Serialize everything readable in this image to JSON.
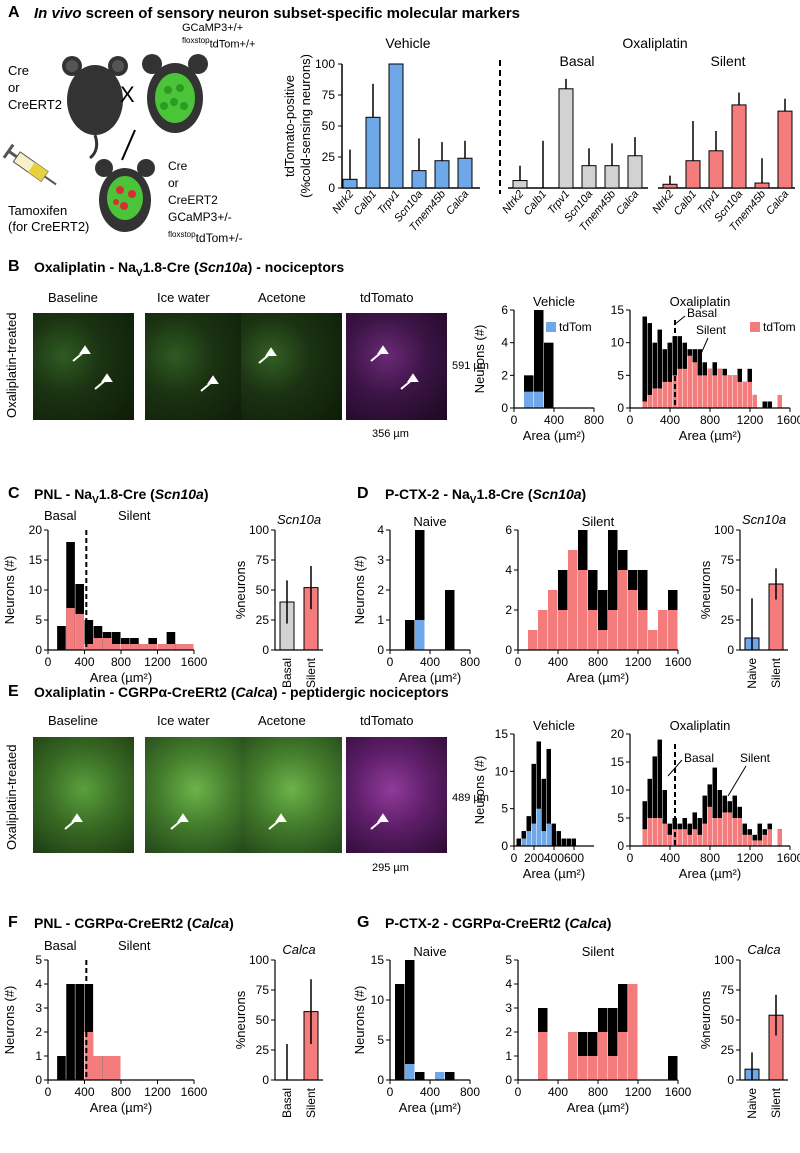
{
  "colors": {
    "vehicle_blue": "#6fa8e8",
    "basal_gray": "#d2d2d2",
    "silent_red": "#f47c7c",
    "black": "#000000",
    "green": "#7cc95a",
    "magenta": "#b04bc0"
  },
  "panelA": {
    "letter": "A",
    "title_italic": "In vivo",
    "title_rest": " screen of sensory neuron subset-specific molecular markers",
    "schematic": {
      "cre_label": [
        "Cre",
        "or",
        "CreERT2"
      ],
      "cross_symbol": "X",
      "gcamp_label": "GCaMP3+/+",
      "floxstop": "floxstop",
      "tdtom_pp": "tdTom+/+",
      "offspring_label": [
        "Cre",
        "or",
        "CreERT2",
        "GCaMP3+/-"
      ],
      "tdtom_pm": "tdTom+/-",
      "tamoxifen": "Tamoxifen",
      "for_creert2": "(for CreERT2)"
    },
    "chart": {
      "ylabel_1": "tdTomato-positive",
      "ylabel_2": "(%cold-sensing neurons)",
      "group_vehicle": "Vehicle",
      "group_oxali": "Oxaliplatin",
      "group_basal": "Basal",
      "group_silent": "Silent",
      "yticks": [
        "0",
        "25",
        "50",
        "75",
        "100"
      ]
    }
  },
  "panelB": {
    "letter": "B",
    "title_pre": "Oxaliplatin - Na",
    "title_sub": "V",
    "title_post": "1.8-Cre (",
    "title_gene": "Scn10a",
    "title_end": ") - nociceptors",
    "side_label": "Oxaliplatin-treated",
    "image_titles": [
      "Baseline",
      "Ice water",
      "Acetone",
      "tdTomato"
    ],
    "scale_v": "591 µm",
    "scale_h": "356 µm",
    "hist_vehicle_title": "Vehicle",
    "hist_oxali_title": "Oxaliplatin",
    "legend_tdtom": "tdTom",
    "basal": "Basal",
    "silent": "Silent",
    "ylabel": "Neurons (#)",
    "xlabel": "Area (µm²)"
  },
  "panelC": {
    "letter": "C",
    "title_pre": "PNL - Na",
    "title_sub": "V",
    "title_post": "1.8-Cre (",
    "title_gene": "Scn10a",
    "title_end": ")",
    "basal": "Basal",
    "silent": "Silent",
    "gene": "Scn10a",
    "ylabel": "Neurons (#)",
    "ylabel_pct": "%neurons",
    "xlabel": "Area (µm²)",
    "bar_labels": [
      "Basal",
      "Silent"
    ]
  },
  "panelD": {
    "letter": "D",
    "title_pre": "P-CTX-2 - Na",
    "title_sub": "V",
    "title_post": "1.8-Cre (",
    "title_gene": "Scn10a",
    "title_end": ")",
    "naive": "Naive",
    "silent": "Silent",
    "gene": "Scn10a",
    "ylabel": "Neurons (#)",
    "ylabel_pct": "%neurons",
    "xlabel": "Area (µm²)",
    "bar_labels": [
      "Naive",
      "Silent"
    ]
  },
  "panelE": {
    "letter": "E",
    "title_pre": "Oxaliplatin - CGRPα-CreERt2 (",
    "title_gene": "Calca",
    "title_end": ") - peptidergic nociceptors",
    "side_label": "Oxaliplatin-treated",
    "image_titles": [
      "Baseline",
      "Ice water",
      "Acetone",
      "tdTomato"
    ],
    "scale_v": "489 µm",
    "scale_h": "295 µm",
    "hist_vehicle_title": "Vehicle",
    "hist_oxali_title": "Oxaliplatin",
    "basal": "Basal",
    "silent": "Silent",
    "ylabel": "Neurons (#)",
    "xlabel": "Area (µm²)"
  },
  "panelF": {
    "letter": "F",
    "title_pre": "PNL - CGRPα-CreERt2 (",
    "title_gene": "Calca",
    "title_end": ")",
    "basal": "Basal",
    "silent": "Silent",
    "gene": "Calca",
    "ylabel": "Neurons (#)",
    "ylabel_pct": "%neurons",
    "xlabel": "Area (µm²)",
    "bar_labels": [
      "Basal",
      "Silent"
    ]
  },
  "panelG": {
    "letter": "G",
    "title_pre": "P-CTX-2 - CGRPα-CreERt2 (",
    "title_gene": "Calca",
    "title_end": ")",
    "naive": "Naive",
    "silent": "Silent",
    "gene": "Calca",
    "ylabel": "Neurons (#)",
    "ylabel_pct": "%neurons",
    "xlabel": "Area (µm²)",
    "bar_labels": [
      "Naive",
      "Silent"
    ]
  },
  "chart_data": [
    {
      "id": "A",
      "type": "bar",
      "categories": [
        "Ntrk2",
        "Calb1",
        "Trpv1",
        "Scn10a",
        "Tmem45b",
        "Calca"
      ],
      "series": [
        {
          "name": "Vehicle",
          "values": [
            7,
            57,
            100,
            14,
            22,
            24
          ],
          "err": [
            24,
            27,
            0,
            26,
            15,
            14
          ]
        },
        {
          "name": "Basal",
          "values": [
            6,
            0,
            80,
            18,
            18,
            26
          ],
          "err": [
            12,
            38,
            8,
            14,
            18,
            15
          ]
        },
        {
          "name": "Silent",
          "values": [
            3,
            22,
            30,
            67,
            4,
            62
          ],
          "err": [
            7,
            32,
            16,
            10,
            20,
            10
          ]
        }
      ],
      "ylim": [
        0,
        100
      ]
    },
    {
      "id": "B-vehicle",
      "type": "bar",
      "x": [
        150,
        250,
        350
      ],
      "series": [
        {
          "name": "total",
          "values": [
            2,
            6,
            4
          ]
        },
        {
          "name": "tdTom",
          "values": [
            1,
            1,
            0
          ]
        }
      ],
      "ylim": [
        0,
        6
      ],
      "xlim": [
        0,
        800
      ],
      "xticks": [
        0,
        400,
        800
      ],
      "yticks": [
        0,
        2,
        4,
        6
      ]
    },
    {
      "id": "B-oxali",
      "type": "bar",
      "x": [
        150,
        200,
        250,
        300,
        350,
        400,
        450,
        500,
        550,
        600,
        650,
        700,
        750,
        800,
        850,
        900,
        950,
        1000,
        1050,
        1100,
        1150,
        1200,
        1250,
        1300,
        1350,
        1400,
        1450,
        1500,
        1550
      ],
      "series": [
        {
          "name": "total",
          "values": [
            14,
            13,
            10,
            12,
            9,
            10,
            11,
            11,
            10,
            9,
            9,
            9,
            7,
            6,
            7,
            6,
            6,
            5,
            5,
            6,
            4,
            6,
            2,
            0,
            1,
            1,
            0,
            0,
            0
          ]
        },
        {
          "name": "tdTom",
          "values": [
            1,
            2,
            3,
            3,
            4,
            4,
            5,
            6,
            6,
            8,
            7,
            5,
            5,
            6,
            5,
            6,
            5,
            5,
            5,
            4,
            4,
            4,
            2,
            0,
            0,
            0,
            0,
            2,
            0
          ]
        }
      ],
      "ylim": [
        0,
        15
      ],
      "xlim": [
        0,
        1600
      ],
      "xticks": [
        0,
        400,
        800,
        1200,
        1600
      ],
      "yticks": [
        0,
        5,
        10,
        15
      ]
    },
    {
      "id": "C",
      "type": "bar",
      "x": [
        150,
        250,
        350,
        450,
        550,
        650,
        750,
        850,
        950,
        1050,
        1150,
        1250,
        1350,
        1450,
        1550
      ],
      "series": [
        {
          "name": "total",
          "values": [
            4,
            18,
            11,
            5,
            4,
            3,
            3,
            2,
            2,
            1,
            2,
            1,
            3,
            1,
            1
          ]
        },
        {
          "name": "tdTom",
          "values": [
            0,
            7,
            6,
            1,
            2,
            2,
            1,
            1,
            1,
            1,
            1,
            1,
            1,
            1,
            1
          ]
        }
      ],
      "ylim": [
        0,
        20
      ],
      "xlim": [
        0,
        1600
      ],
      "xticks": [
        0,
        400,
        800,
        1200,
        1600
      ],
      "yticks": [
        0,
        5,
        10,
        15,
        20
      ]
    },
    {
      "id": "C-pct",
      "type": "bar",
      "categories": [
        "Basal",
        "Silent"
      ],
      "values": [
        40,
        52
      ],
      "err": [
        18,
        18
      ],
      "ylim": [
        0,
        100
      ]
    },
    {
      "id": "D-naive",
      "type": "bar",
      "x": [
        200,
        300,
        600
      ],
      "series": [
        {
          "name": "total",
          "values": [
            1,
            4,
            2
          ]
        },
        {
          "name": "tdTom",
          "values": [
            0,
            1,
            0
          ]
        }
      ],
      "ylim": [
        0,
        4
      ],
      "xlim": [
        0,
        800
      ],
      "xticks": [
        0,
        400,
        800
      ],
      "yticks": [
        0,
        1,
        2,
        3,
        4
      ]
    },
    {
      "id": "D-silent",
      "type": "bar",
      "x": [
        150,
        250,
        350,
        450,
        550,
        650,
        750,
        850,
        950,
        1050,
        1150,
        1250,
        1350,
        1450,
        1550
      ],
      "series": [
        {
          "name": "total",
          "values": [
            1,
            2,
            3,
            4,
            5,
            6,
            4,
            3,
            6,
            5,
            4,
            4,
            1,
            2,
            3
          ]
        },
        {
          "name": "tdTom",
          "values": [
            1,
            2,
            3,
            2,
            5,
            4,
            2,
            1,
            2,
            4,
            3,
            2,
            1,
            2,
            2
          ]
        }
      ],
      "ylim": [
        0,
        6
      ],
      "xlim": [
        0,
        1600
      ],
      "xticks": [
        0,
        400,
        800,
        1200,
        1600
      ],
      "yticks": [
        0,
        2,
        4,
        6
      ]
    },
    {
      "id": "D-pct",
      "type": "bar",
      "categories": [
        "Naive",
        "Silent"
      ],
      "values": [
        10,
        55
      ],
      "err": [
        33,
        13
      ],
      "ylim": [
        0,
        100
      ]
    },
    {
      "id": "E-vehicle",
      "type": "bar",
      "x": [
        50,
        100,
        150,
        200,
        250,
        300,
        350,
        400,
        450,
        500,
        550,
        600,
        650
      ],
      "series": [
        {
          "name": "total",
          "values": [
            1,
            2,
            4,
            11,
            14,
            9,
            13,
            3,
            2,
            1,
            1,
            1,
            0
          ]
        },
        {
          "name": "tdTom",
          "values": [
            0,
            1,
            2,
            3,
            5,
            2,
            3,
            0,
            0,
            0,
            0,
            0,
            0
          ]
        }
      ],
      "ylim": [
        0,
        15
      ],
      "xlim": [
        0,
        800
      ],
      "xticks": [
        0,
        200,
        400,
        600
      ],
      "yticks": [
        0,
        5,
        10,
        15
      ]
    },
    {
      "id": "E-oxali",
      "type": "bar",
      "x": [
        150,
        200,
        250,
        300,
        350,
        400,
        450,
        500,
        550,
        600,
        650,
        700,
        750,
        800,
        850,
        900,
        950,
        1000,
        1050,
        1100,
        1150,
        1200,
        1250,
        1300,
        1350,
        1400,
        1450,
        1500,
        1550
      ],
      "series": [
        {
          "name": "total",
          "values": [
            8,
            12,
            16,
            19,
            10,
            4,
            5,
            4,
            5,
            4,
            6,
            5,
            9,
            11,
            14,
            10,
            9,
            8,
            9,
            7,
            4,
            3,
            2,
            4,
            3,
            4,
            0,
            3,
            0
          ]
        },
        {
          "name": "tdTom",
          "values": [
            3,
            5,
            5,
            5,
            4,
            2,
            3,
            3,
            3,
            2,
            3,
            2,
            4,
            7,
            5,
            5,
            6,
            6,
            5,
            5,
            2,
            2,
            1,
            1,
            2,
            3,
            0,
            3,
            0
          ]
        }
      ],
      "ylim": [
        0,
        20
      ],
      "xlim": [
        0,
        1600
      ],
      "xticks": [
        0,
        400,
        800,
        1200,
        1600
      ],
      "yticks": [
        0,
        5,
        10,
        15,
        20
      ]
    },
    {
      "id": "F",
      "type": "bar",
      "x": [
        150,
        250,
        350,
        450,
        550,
        650,
        750
      ],
      "series": [
        {
          "name": "total",
          "values": [
            1,
            4,
            4,
            4,
            1,
            1,
            1
          ]
        },
        {
          "name": "tdTom",
          "values": [
            0,
            0,
            0,
            2,
            1,
            1,
            1
          ]
        }
      ],
      "ylim": [
        0,
        5
      ],
      "xlim": [
        0,
        1600
      ],
      "xticks": [
        0,
        400,
        800,
        1200,
        1600
      ],
      "yticks": [
        0,
        1,
        2,
        3,
        4,
        5
      ]
    },
    {
      "id": "F-pct",
      "type": "bar",
      "categories": [
        "Basal",
        "Silent"
      ],
      "values": [
        0,
        57
      ],
      "err": [
        30,
        27
      ],
      "ylim": [
        0,
        100
      ]
    },
    {
      "id": "G-naive",
      "type": "bar",
      "x": [
        100,
        200,
        300,
        400,
        500,
        600
      ],
      "series": [
        {
          "name": "total",
          "values": [
            12,
            15,
            1,
            0,
            1,
            1
          ]
        },
        {
          "name": "tdTom",
          "values": [
            0,
            2,
            0,
            0,
            1,
            0
          ]
        }
      ],
      "ylim": [
        0,
        15
      ],
      "xlim": [
        0,
        800
      ],
      "xticks": [
        0,
        400,
        800
      ],
      "yticks": [
        0,
        5,
        10,
        15
      ]
    },
    {
      "id": "G-silent",
      "type": "bar",
      "x": [
        250,
        550,
        650,
        750,
        850,
        950,
        1050,
        1150,
        1550
      ],
      "series": [
        {
          "name": "total",
          "values": [
            3,
            2,
            2,
            2,
            3,
            3,
            4,
            4,
            1
          ]
        },
        {
          "name": "tdTom",
          "values": [
            2,
            2,
            1,
            1,
            2,
            1,
            2,
            4,
            0
          ]
        }
      ],
      "ylim": [
        0,
        5
      ],
      "xlim": [
        0,
        1600
      ],
      "xticks": [
        0,
        400,
        800,
        1200,
        1600
      ],
      "yticks": [
        0,
        1,
        2,
        3,
        4,
        5
      ]
    },
    {
      "id": "G-pct",
      "type": "bar",
      "categories": [
        "Naive",
        "Silent"
      ],
      "values": [
        9,
        54
      ],
      "err": [
        14,
        17
      ],
      "ylim": [
        0,
        100
      ]
    }
  ]
}
